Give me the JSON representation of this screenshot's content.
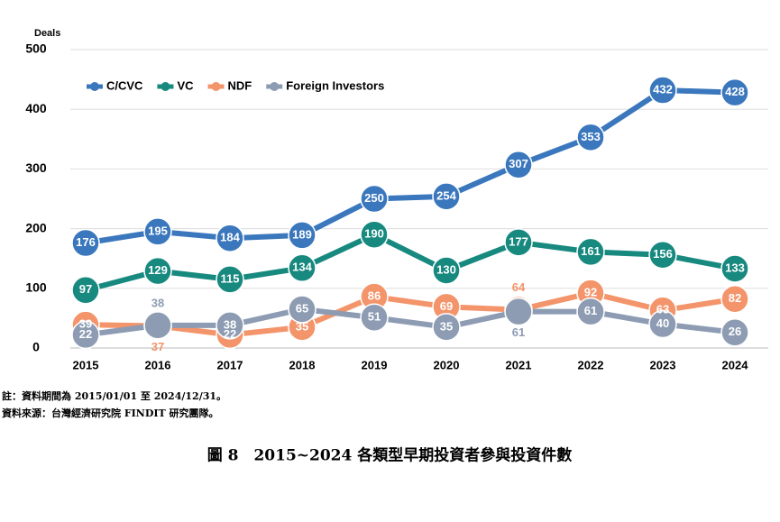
{
  "chart_data": {
    "type": "line",
    "y_axis_label": "Deals",
    "categories": [
      "2015",
      "2016",
      "2017",
      "2018",
      "2019",
      "2020",
      "2021",
      "2022",
      "2023",
      "2024"
    ],
    "series": [
      {
        "name": "C/CVC",
        "color": "#3a77bd",
        "values": [
          176,
          195,
          184,
          189,
          250,
          254,
          307,
          353,
          432,
          428
        ]
      },
      {
        "name": "VC",
        "color": "#17897f",
        "values": [
          97,
          129,
          115,
          134,
          190,
          130,
          177,
          161,
          156,
          133
        ]
      },
      {
        "name": "NDF",
        "color": "#f3946a",
        "values": [
          39,
          37,
          22,
          35,
          86,
          69,
          64,
          92,
          63,
          82
        ]
      },
      {
        "name": "Foreign Investors",
        "color": "#8d9cb3",
        "values": [
          22,
          38,
          38,
          65,
          51,
          35,
          61,
          61,
          40,
          26
        ]
      }
    ],
    "ylim": [
      0,
      500
    ],
    "yticks": [
      0,
      100,
      200,
      300,
      400,
      500
    ],
    "grid": true,
    "legend": "top-left",
    "notes": [
      "註：資料期間為 2015/01/01 至 2024/12/31。",
      "資料來源：台灣經濟研究院 FINDIT 研究團隊。"
    ],
    "caption": "圖 8　2015~2024 各類型早期投資者參與投資件數"
  }
}
